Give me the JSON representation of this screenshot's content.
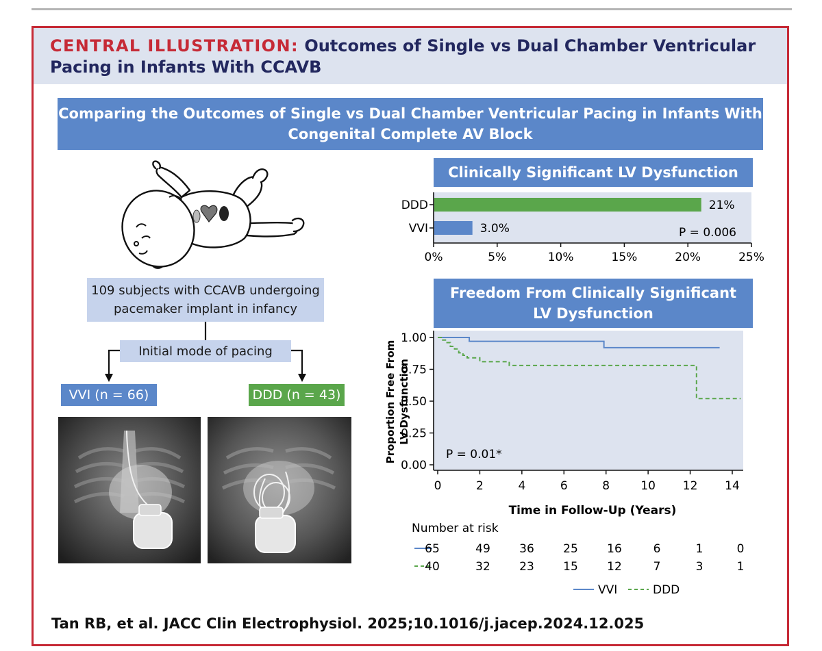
{
  "header": {
    "label": "CENTRAL ILLUSTRATION:",
    "title_line1": "Outcomes of Single vs Dual Chamber Ventricular",
    "title_line2": "Pacing in Infants With CCAVB"
  },
  "banner": {
    "line1": "Comparing the Outcomes of Single vs Dual Chamber Ventricular Pacing in Infants With",
    "line2": "Congenital Complete AV Block"
  },
  "flow": {
    "subjects_line1": "109 subjects with CCAVB undergoing",
    "subjects_line2": "pacemaker implant in infancy",
    "initial_mode": "Initial mode of pacing",
    "vvi_box": "VVI (n = 66)",
    "ddd_box": "DDD (n = 43)"
  },
  "colors": {
    "vvi": "#5b87c9",
    "ddd": "#5aa64b",
    "header_bg": "#dde3ef",
    "border": "#c62a36",
    "navy": "#22275e"
  },
  "bar_chart_title": "Clinically Significant LV Dysfunction",
  "km_chart_title_line1": "Freedom From Clinically Significant",
  "km_chart_title_line2": "LV Dysfunction",
  "chart_data": [
    {
      "type": "bar",
      "orientation": "horizontal",
      "title": "Clinically Significant LV Dysfunction",
      "categories": [
        "DDD",
        "VVI"
      ],
      "values": [
        21,
        3.0
      ],
      "value_labels": [
        "21%",
        "3.0%"
      ],
      "bar_colors": [
        "#5aa64b",
        "#5b87c9"
      ],
      "xlim": [
        0,
        25
      ],
      "xticks": [
        "0%",
        "5%",
        "10%",
        "15%",
        "20%",
        "25%"
      ],
      "annotation": "P = 0.006"
    },
    {
      "type": "line",
      "title": "Freedom From Clinically Significant LV Dysfunction",
      "xlabel": "Time in Follow-Up (Years)",
      "ylabel": "Proportion Free From LV Dysfunction",
      "xlim": [
        0,
        14.5
      ],
      "ylim": [
        0,
        1.0
      ],
      "xticks": [
        0,
        2,
        4,
        6,
        8,
        10,
        12,
        14
      ],
      "yticks": [
        "0.00",
        "0.25",
        "0.50",
        "0.75",
        "1.00"
      ],
      "annotation": "P = 0.01*",
      "series": [
        {
          "name": "VVI",
          "style": "solid",
          "color": "#5b87c9",
          "x": [
            0,
            1.5,
            1.5,
            7.9,
            7.9,
            13.4
          ],
          "y": [
            1.0,
            1.0,
            0.97,
            0.97,
            0.92,
            0.92
          ]
        },
        {
          "name": "DDD",
          "style": "dashed",
          "color": "#5aa64b",
          "x": [
            0,
            0.2,
            0.2,
            0.4,
            0.4,
            0.6,
            0.6,
            0.8,
            0.8,
            1.0,
            1.0,
            1.2,
            1.2,
            1.4,
            1.4,
            2.0,
            2.0,
            3.4,
            3.4,
            12.3,
            12.3,
            14.4
          ],
          "y": [
            1.0,
            1.0,
            0.98,
            0.98,
            0.96,
            0.96,
            0.93,
            0.93,
            0.91,
            0.91,
            0.88,
            0.88,
            0.86,
            0.86,
            0.84,
            0.84,
            0.81,
            0.81,
            0.78,
            0.78,
            0.52,
            0.52
          ]
        }
      ],
      "risk_table": {
        "title": "Number at risk",
        "rows": [
          {
            "name": "VVI",
            "values": [
              "65",
              "49",
              "36",
              "25",
              "16",
              "6",
              "1",
              "0"
            ]
          },
          {
            "name": "DDD",
            "values": [
              "40",
              "32",
              "23",
              "15",
              "12",
              "7",
              "3",
              "1"
            ]
          }
        ]
      },
      "legend": [
        {
          "label": "VVI",
          "style": "solid",
          "color": "#5b87c9"
        },
        {
          "label": "DDD",
          "style": "dashed",
          "color": "#5aa64b"
        }
      ]
    }
  ],
  "citation": "Tan RB, et al. JACC Clin Electrophysiol. 2025;10.1016/j.jacep.2024.12.025"
}
